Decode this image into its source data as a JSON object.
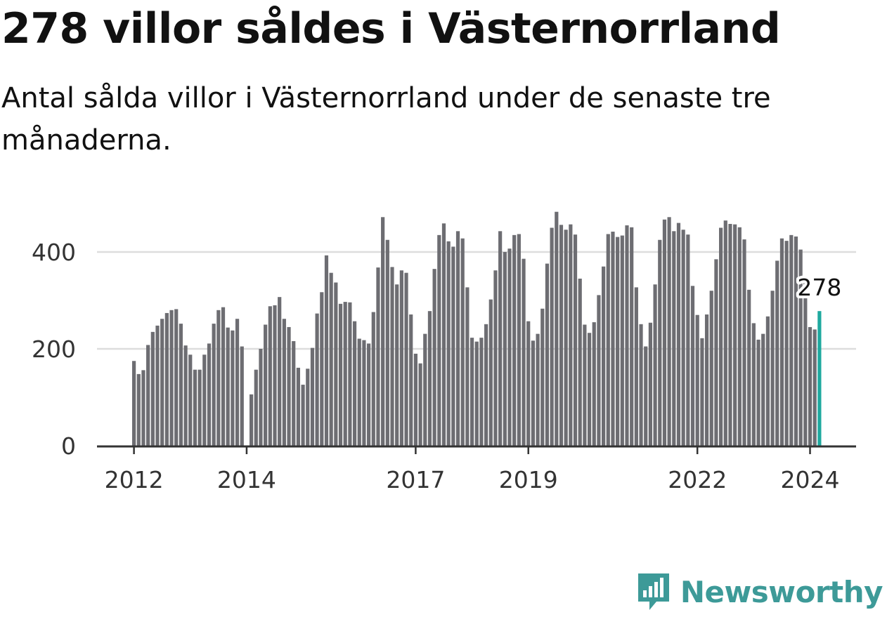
{
  "title": "278 villor såldes i Västernorrland",
  "subtitle": "Antal sålda villor i Västernorrland under de senaste tre månaderna.",
  "brand": {
    "name": "Newsworthy",
    "color": "#3d9a98",
    "logo_icon": "bar-chart-speech-bubble-icon"
  },
  "colors": {
    "bar": "#6d6d72",
    "highlight": "#1fa99f",
    "grid": "#dddddd",
    "axis": "#333333"
  },
  "chart_data": {
    "type": "bar",
    "title": "278 villor såldes i Västernorrland",
    "subtitle": "Antal sålda villor i Västernorrland under de senaste tre månaderna.",
    "xlabel": "",
    "ylabel": "",
    "ylim": [
      0,
      500
    ],
    "yticks": [
      "0",
      "200",
      "400"
    ],
    "xticks": [
      "2012",
      "2014",
      "2017",
      "2019",
      "2022",
      "2024"
    ],
    "grid": true,
    "start": "2012-01",
    "values": [
      175,
      148,
      156,
      208,
      235,
      248,
      262,
      274,
      280,
      282,
      252,
      207,
      188,
      157,
      157,
      188,
      211,
      252,
      280,
      286,
      244,
      238,
      262,
      205,
      0,
      106,
      157,
      200,
      250,
      288,
      290,
      307,
      262,
      245,
      216,
      161,
      126,
      159,
      202,
      273,
      317,
      393,
      357,
      337,
      293,
      297,
      296,
      257,
      221,
      218,
      211,
      276,
      368,
      472,
      425,
      369,
      333,
      362,
      357,
      271,
      190,
      170,
      231,
      278,
      365,
      435,
      459,
      422,
      411,
      443,
      428,
      327,
      223,
      215,
      223,
      251,
      302,
      362,
      443,
      400,
      407,
      435,
      437,
      386,
      257,
      217,
      231,
      283,
      376,
      450,
      483,
      456,
      446,
      457,
      436,
      345,
      250,
      233,
      255,
      311,
      370,
      437,
      442,
      431,
      434,
      455,
      451,
      327,
      251,
      205,
      254,
      333,
      425,
      467,
      472,
      443,
      460,
      446,
      436,
      330,
      270,
      222,
      271,
      320,
      385,
      450,
      465,
      458,
      457,
      451,
      426,
      322,
      253,
      219,
      231,
      267,
      320,
      382,
      428,
      423,
      435,
      432,
      405,
      343,
      245,
      240,
      278
    ],
    "highlight": {
      "label": "278",
      "value": 278,
      "period": "2024-03"
    }
  }
}
